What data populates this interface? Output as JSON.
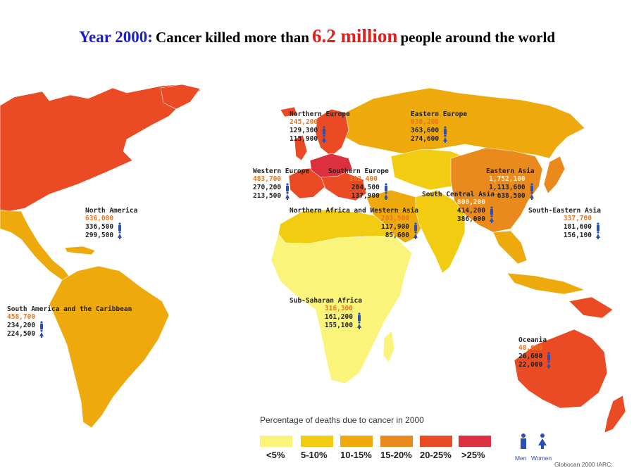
{
  "title": {
    "part1": "Year 2000:",
    "part2": "Cancer killed more than",
    "part3": "6.2 million",
    "part4": "people around the world"
  },
  "colors": {
    "lt5": "#fbf47a",
    "p5_10": "#f2cc10",
    "p10_15": "#eeaa0c",
    "p15_20": "#ea8a1c",
    "p20_25": "#ea4a24",
    "gt25": "#dc3040",
    "men_icon": "#2c4fb4",
    "total_text": "#e8751c"
  },
  "regions": {
    "northern_europe": {
      "name": "Northern Europe",
      "total": "245,200",
      "men": "129,300",
      "women": "115,900"
    },
    "eastern_europe": {
      "name": "Eastern Europe",
      "total": "638,200",
      "men": "363,600",
      "women": "274,600"
    },
    "western_europe": {
      "name": "Western Europe",
      "total": "483,700",
      "men": "270,200",
      "women": "213,500"
    },
    "southern_europe": {
      "name": "Southern Europe",
      "total": "342,400",
      "men": "204,500",
      "women": "137,900"
    },
    "eastern_asia": {
      "name": "Eastern Asia",
      "total": "1,752,100",
      "men": "1,113,600",
      "women": "638,500"
    },
    "south_central_asia": {
      "name": "South Central Asia",
      "total": "800,200",
      "men": "414,200",
      "women": "386,000"
    },
    "north_america": {
      "name": "North America",
      "total": "636,000",
      "men": "336,500",
      "women": "299,500"
    },
    "northern_africa_western_asia": {
      "name": "Northern Africa and Western Asia",
      "total": "203,500",
      "men": "117,900",
      "women": "85,600"
    },
    "south_eastern_asia": {
      "name": "South-Eastern Asia",
      "total": "337,700",
      "men": "181,600",
      "women": "156,100"
    },
    "south_america": {
      "name": "South America and the Caribbean",
      "total": "458,700",
      "men": "234,200",
      "women": "224,500"
    },
    "sub_saharan_africa": {
      "name": "Sub-Saharan Africa",
      "total": "316,300",
      "men": "161,200",
      "women": "155,100"
    },
    "oceania": {
      "name": "Oceania",
      "total": "48,600",
      "men": "26,600",
      "women": "22,000"
    }
  },
  "legend": {
    "title": "Percentage of deaths due to cancer in 2000",
    "items": [
      {
        "label": "<5%",
        "color_key": "lt5"
      },
      {
        "label": "5-10%",
        "color_key": "p5_10"
      },
      {
        "label": "10-15%",
        "color_key": "p10_15"
      },
      {
        "label": "15-20%",
        "color_key": "p15_20"
      },
      {
        "label": "20-25%",
        "color_key": "p20_25"
      },
      {
        "label": ">25%",
        "color_key": "gt25"
      }
    ],
    "men_label": "Men",
    "women_label": "Women"
  },
  "source": "Globocan 2000 IARC;"
}
